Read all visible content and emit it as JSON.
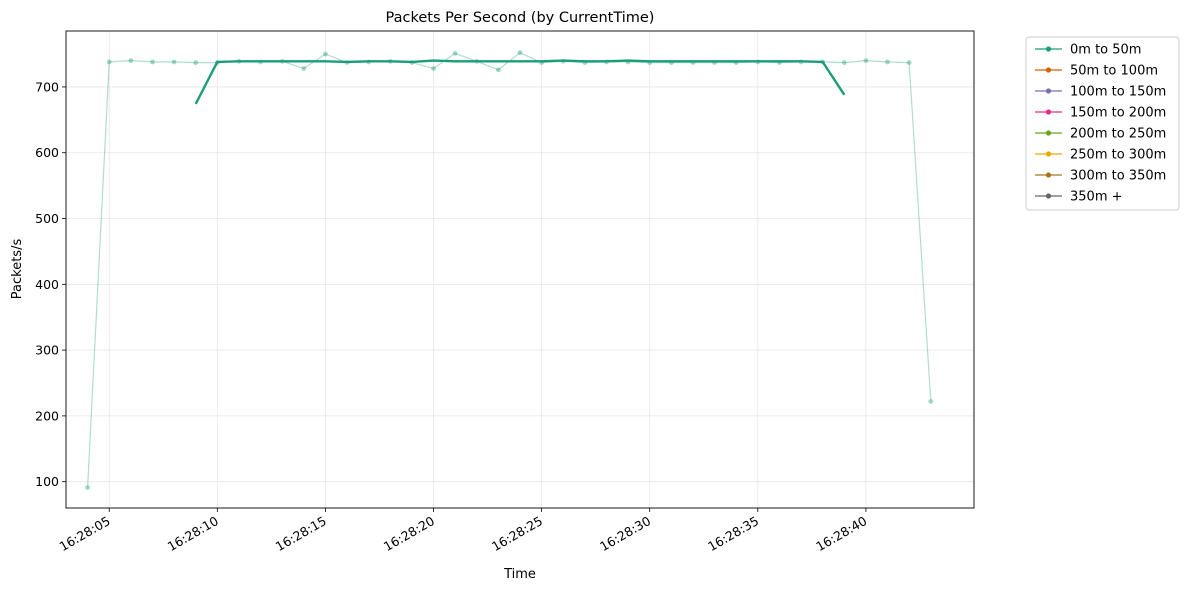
{
  "chart_data": {
    "type": "line",
    "title": "Packets Per Second (by CurrentTime)",
    "xlabel": "Time",
    "ylabel": "Packets/s",
    "ylim": [
      60,
      785
    ],
    "y_ticks": [
      100,
      200,
      300,
      400,
      500,
      600,
      700
    ],
    "x_ticks": [
      "16:28:05",
      "16:28:10",
      "16:28:15",
      "16:28:20",
      "16:28:25",
      "16:28:30",
      "16:28:35",
      "16:28:40"
    ],
    "xlim": [
      "16:28:03",
      "16:28:45"
    ],
    "grid": true,
    "legend_position": "outside-top-right",
    "series": [
      {
        "name": "0m to 50m",
        "color": "#1b9e77",
        "role": "raw",
        "x": [
          "16:28:04",
          "16:28:05",
          "16:28:06",
          "16:28:07",
          "16:28:08",
          "16:28:09",
          "16:28:10",
          "16:28:11",
          "16:28:12",
          "16:28:13",
          "16:28:14",
          "16:28:15",
          "16:28:16",
          "16:28:17",
          "16:28:18",
          "16:28:19",
          "16:28:20",
          "16:28:21",
          "16:28:22",
          "16:28:23",
          "16:28:24",
          "16:28:25",
          "16:28:26",
          "16:28:27",
          "16:28:28",
          "16:28:29",
          "16:28:30",
          "16:28:31",
          "16:28:32",
          "16:28:33",
          "16:28:34",
          "16:28:35",
          "16:28:36",
          "16:28:37",
          "16:28:38",
          "16:28:39",
          "16:28:40",
          "16:28:41",
          "16:28:42",
          "16:28:43"
        ],
        "values": [
          91,
          738,
          740,
          738,
          738,
          737,
          737,
          739,
          738,
          739,
          728,
          750,
          737,
          738,
          739,
          737,
          728,
          751,
          739,
          726,
          752,
          737,
          739,
          737,
          738,
          738,
          737,
          737,
          737,
          737,
          737,
          738,
          737,
          738,
          738,
          737,
          740,
          738,
          737,
          222
        ]
      },
      {
        "name": "0m to 50m",
        "color": "#1b9e77",
        "role": "smoothed",
        "x": [
          "16:28:09",
          "16:28:10",
          "16:28:11",
          "16:28:12",
          "16:28:13",
          "16:28:14",
          "16:28:15",
          "16:28:16",
          "16:28:17",
          "16:28:18",
          "16:28:19",
          "16:28:20",
          "16:28:21",
          "16:28:22",
          "16:28:23",
          "16:28:24",
          "16:28:25",
          "16:28:26",
          "16:28:27",
          "16:28:28",
          "16:28:29",
          "16:28:30",
          "16:28:31",
          "16:28:32",
          "16:28:33",
          "16:28:34",
          "16:28:35",
          "16:28:36",
          "16:28:37",
          "16:28:38",
          "16:28:39"
        ],
        "values": [
          674,
          738,
          739,
          739,
          739,
          739,
          739,
          738,
          739,
          739,
          738,
          740,
          739,
          739,
          739,
          739,
          739,
          740,
          739,
          739,
          740,
          739,
          739,
          739,
          739,
          739,
          739,
          739,
          739,
          738,
          688
        ]
      }
    ],
    "legend": [
      {
        "label": "0m to 50m",
        "color": "#1b9e77"
      },
      {
        "label": "50m to 100m",
        "color": "#d95f02"
      },
      {
        "label": "100m to 150m",
        "color": "#7570b3"
      },
      {
        "label": "150m to 200m",
        "color": "#e7298a"
      },
      {
        "label": "200m to 250m",
        "color": "#66a61e"
      },
      {
        "label": "250m to 300m",
        "color": "#e6ab02"
      },
      {
        "label": "300m to 350m",
        "color": "#a6761d"
      },
      {
        "label": "350m +",
        "color": "#666666"
      }
    ]
  }
}
